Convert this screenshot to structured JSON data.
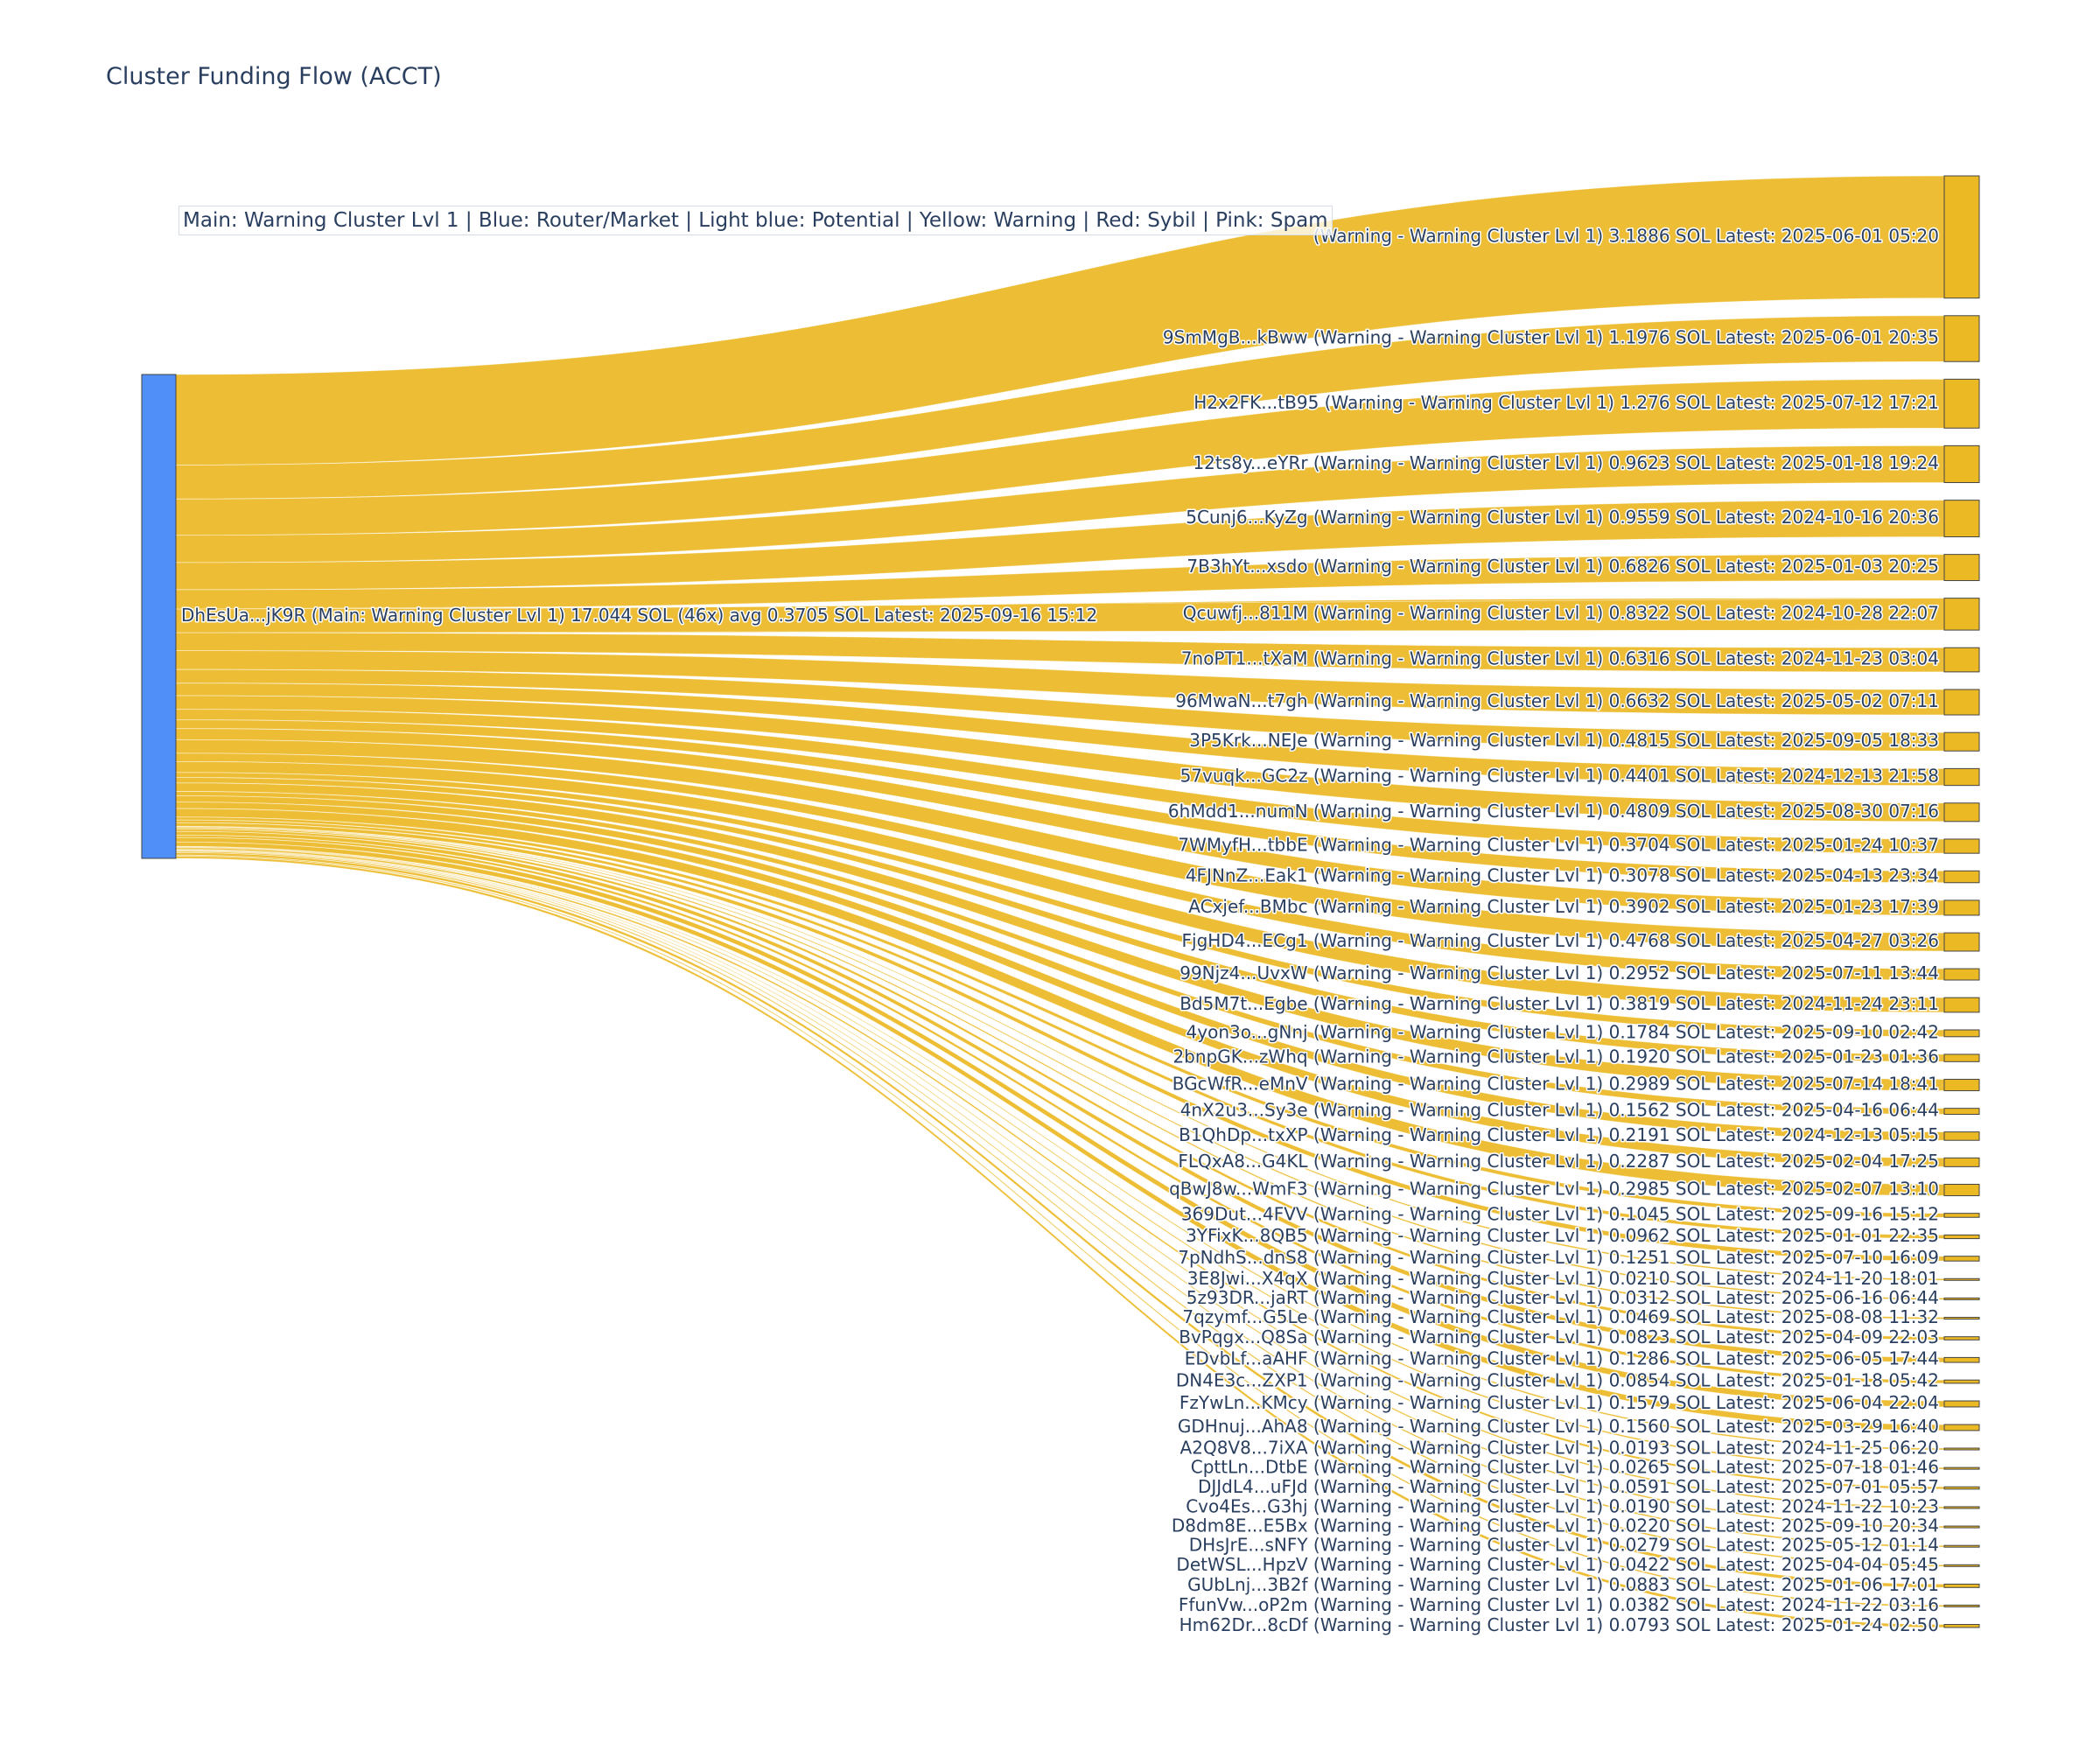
{
  "chart_data": {
    "type": "sankey",
    "title": "Cluster Funding Flow (ACCT)",
    "legend_text": "Main: Warning Cluster Lvl 1  |  Blue: Router/Market | Light blue: Potential | Yellow: Warning | Red: Sybil | Pink: Spam",
    "colors": {
      "source_node": "#4f8ff7",
      "target_node": "#ebb924",
      "link": "#ebb924"
    },
    "source": {
      "label": "DhEsUa...jK9R (Main: Warning Cluster Lvl 1) 17.044 SOL (46x) avg 0.3705 SOL Latest: 2025-09-16 15:12",
      "value": 17.044
    },
    "targets": [
      {
        "label": "(Warning - Warning Cluster Lvl 1) 3.1886 SOL Latest: 2025-06-01 05:20",
        "value": 3.1886
      },
      {
        "label": "9SmMgB...kBww (Warning - Warning Cluster Lvl 1) 1.1976 SOL Latest: 2025-06-01 20:35",
        "value": 1.1976
      },
      {
        "label": "H2x2FK...tB95 (Warning - Warning Cluster Lvl 1) 1.276 SOL Latest: 2025-07-12 17:21",
        "value": 1.276
      },
      {
        "label": "12ts8y...eYRr (Warning - Warning Cluster Lvl 1) 0.9623 SOL Latest: 2025-01-18 19:24",
        "value": 0.9623
      },
      {
        "label": "5Cunj6...KyZg (Warning - Warning Cluster Lvl 1) 0.9559 SOL Latest: 2024-10-16 20:36",
        "value": 0.9559
      },
      {
        "label": "7B3hYt...xsdo (Warning - Warning Cluster Lvl 1) 0.6826 SOL Latest: 2025-01-03 20:25",
        "value": 0.6826
      },
      {
        "label": "Qcuwfj...811M (Warning - Warning Cluster Lvl 1) 0.8322 SOL Latest: 2024-10-28 22:07",
        "value": 0.8322
      },
      {
        "label": "7noPT1...tXaM (Warning - Warning Cluster Lvl 1) 0.6316 SOL Latest: 2024-11-23 03:04",
        "value": 0.6316
      },
      {
        "label": "96MwaN...t7gh (Warning - Warning Cluster Lvl 1) 0.6632 SOL Latest: 2025-05-02 07:11",
        "value": 0.6632
      },
      {
        "label": "3P5Krk...NEJe (Warning - Warning Cluster Lvl 1) 0.4815 SOL Latest: 2025-09-05 18:33",
        "value": 0.4815
      },
      {
        "label": "57vuqk...GC2z (Warning - Warning Cluster Lvl 1) 0.4401 SOL Latest: 2024-12-13 21:58",
        "value": 0.4401
      },
      {
        "label": "6hMdd1...numN (Warning - Warning Cluster Lvl 1) 0.4809 SOL Latest: 2025-08-30 07:16",
        "value": 0.4809
      },
      {
        "label": "7WMyfH...tbbE (Warning - Warning Cluster Lvl 1) 0.3704 SOL Latest: 2025-01-24 10:37",
        "value": 0.3704
      },
      {
        "label": "4FJNnZ...Eak1 (Warning - Warning Cluster Lvl 1) 0.3078 SOL Latest: 2025-04-13 23:34",
        "value": 0.3078
      },
      {
        "label": "ACxjef...BMbc (Warning - Warning Cluster Lvl 1) 0.3902 SOL Latest: 2025-01-23 17:39",
        "value": 0.3902
      },
      {
        "label": "FjgHD4...ECg1 (Warning - Warning Cluster Lvl 1) 0.4768 SOL Latest: 2025-04-27 03:26",
        "value": 0.4768
      },
      {
        "label": "99Njz4...UvxW (Warning - Warning Cluster Lvl 1) 0.2952 SOL Latest: 2025-07-11 13:44",
        "value": 0.2952
      },
      {
        "label": "Bd5M7t...Egbe (Warning - Warning Cluster Lvl 1) 0.3819 SOL Latest: 2024-11-24 23:11",
        "value": 0.3819
      },
      {
        "label": "4yon3o...gNnj (Warning - Warning Cluster Lvl 1) 0.1784 SOL Latest: 2025-09-10 02:42",
        "value": 0.1784
      },
      {
        "label": "2bnpGK...zWhq (Warning - Warning Cluster Lvl 1) 0.1920 SOL Latest: 2025-01-23 01:36",
        "value": 0.192
      },
      {
        "label": "BGcWfR...eMnV (Warning - Warning Cluster Lvl 1) 0.2989 SOL Latest: 2025-07-14 18:41",
        "value": 0.2989
      },
      {
        "label": "4nX2u3...Sy3e (Warning - Warning Cluster Lvl 1) 0.1562 SOL Latest: 2025-04-16 06:44",
        "value": 0.1562
      },
      {
        "label": "B1QhDp...txXP (Warning - Warning Cluster Lvl 1) 0.2191 SOL Latest: 2024-12-13 05:15",
        "value": 0.2191
      },
      {
        "label": "FLQxA8...G4KL (Warning - Warning Cluster Lvl 1) 0.2287 SOL Latest: 2025-02-04 17:25",
        "value": 0.2287
      },
      {
        "label": "qBwJ8w...WmF3 (Warning - Warning Cluster Lvl 1) 0.2985 SOL Latest: 2025-02-07 13:10",
        "value": 0.2985
      },
      {
        "label": "369Dut...4FVV (Warning - Warning Cluster Lvl 1) 0.1045 SOL Latest: 2025-09-16 15:12",
        "value": 0.1045
      },
      {
        "label": "3YFixK...8QB5 (Warning - Warning Cluster Lvl 1) 0.0962 SOL Latest: 2025-01-01 22:35",
        "value": 0.0962
      },
      {
        "label": "7pNdhS...dnS8 (Warning - Warning Cluster Lvl 1) 0.1251 SOL Latest: 2025-07-10 16:09",
        "value": 0.1251
      },
      {
        "label": "3E8Jwi...X4qX (Warning - Warning Cluster Lvl 1) 0.0210 SOL Latest: 2024-11-20 18:01",
        "value": 0.021
      },
      {
        "label": "5z93DR...jaRT (Warning - Warning Cluster Lvl 1) 0.0312 SOL Latest: 2025-06-16 06:44",
        "value": 0.0312
      },
      {
        "label": "7qzymf...G5Le (Warning - Warning Cluster Lvl 1) 0.0469 SOL Latest: 2025-08-08 11:32",
        "value": 0.0469
      },
      {
        "label": "BvPqgx...Q8Sa (Warning - Warning Cluster Lvl 1) 0.0823 SOL Latest: 2025-04-09 22:03",
        "value": 0.0823
      },
      {
        "label": "EDvbLf...aAHF (Warning - Warning Cluster Lvl 1) 0.1286 SOL Latest: 2025-06-05 17:44",
        "value": 0.1286
      },
      {
        "label": "DN4E3c...ZXP1 (Warning - Warning Cluster Lvl 1) 0.0854 SOL Latest: 2025-01-18 05:42",
        "value": 0.0854
      },
      {
        "label": "FzYwLn...KMcy (Warning - Warning Cluster Lvl 1) 0.1579 SOL Latest: 2025-06-04 22:04",
        "value": 0.1579
      },
      {
        "label": "GDHnuj...AhA8 (Warning - Warning Cluster Lvl 1) 0.1560 SOL Latest: 2025-03-29 16:40",
        "value": 0.156
      },
      {
        "label": "A2Q8V8...7iXA (Warning - Warning Cluster Lvl 1) 0.0193 SOL Latest: 2024-11-25 06:20",
        "value": 0.0193
      },
      {
        "label": "CpttLn...DtbE (Warning - Warning Cluster Lvl 1) 0.0265 SOL Latest: 2025-07-18 01:46",
        "value": 0.0265
      },
      {
        "label": "DJJdL4...uFJd (Warning - Warning Cluster Lvl 1) 0.0591 SOL Latest: 2025-07-01 05:57",
        "value": 0.0591
      },
      {
        "label": "Cvo4Es...G3hj (Warning - Warning Cluster Lvl 1) 0.0190 SOL Latest: 2024-11-22 10:23",
        "value": 0.019
      },
      {
        "label": "D8dm8E...E5Bx (Warning - Warning Cluster Lvl 1) 0.0220 SOL Latest: 2025-09-10 20:34",
        "value": 0.022
      },
      {
        "label": "DHsJrE...sNFY (Warning - Warning Cluster Lvl 1) 0.0279 SOL Latest: 2025-05-12 01:14",
        "value": 0.0279
      },
      {
        "label": "DetWSL...HpzV (Warning - Warning Cluster Lvl 1) 0.0422 SOL Latest: 2025-04-04 05:45",
        "value": 0.0422
      },
      {
        "label": "GUbLnj...3B2f (Warning - Warning Cluster Lvl 1) 0.0883 SOL Latest: 2025-01-06 17:01",
        "value": 0.0883
      },
      {
        "label": "FfunVw...oP2m (Warning - Warning Cluster Lvl 1) 0.0382 SOL Latest: 2024-11-22 03:16",
        "value": 0.0382
      },
      {
        "label": "Hm62Dr...8cDf (Warning - Warning Cluster Lvl 1) 0.0793 SOL Latest: 2025-01-24 02:50",
        "value": 0.0793
      }
    ]
  }
}
